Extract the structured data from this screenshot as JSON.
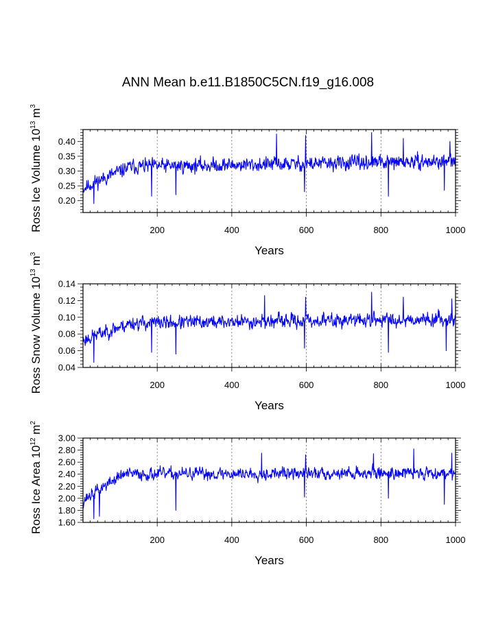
{
  "title": "ANN Mean b.e11.B1850C5CN.f19_g16.008",
  "colors": {
    "series": "#0000ff",
    "axis": "#000000",
    "grid": "#555555"
  },
  "chart_data": [
    {
      "type": "line",
      "ylabel": "Ross Ice Volume 10^13 m^3",
      "ylabel_parts": {
        "main": "Ross Ice Volume 10",
        "sup1": "13",
        "mid": " m",
        "sup2": "3"
      },
      "xlabel": "Years",
      "xlim": [
        1,
        1000
      ],
      "ylim": [
        0.16,
        0.44
      ],
      "xticks": [
        200,
        400,
        600,
        800,
        1000
      ],
      "xtick_labels": [
        "200",
        "400",
        "600",
        "800",
        "1000"
      ],
      "yticks": [
        0.2,
        0.25,
        0.3,
        0.35,
        0.4
      ],
      "ytick_labels": [
        "0.20",
        "0.25",
        "0.30",
        "0.35",
        "0.40"
      ],
      "gridlines_x": [
        200,
        400,
        600,
        800
      ],
      "series": [
        {
          "name": "Ross Ice Volume",
          "gen": {
            "seed": 11,
            "start": 0.24,
            "ramp_end": 130,
            "plateau": 0.315,
            "trend": 2e-05,
            "amp": 0.038,
            "dips": [
              [
                30,
                0.19
              ],
              [
                185,
                0.215
              ],
              [
                250,
                0.22
              ],
              [
                595,
                0.23
              ],
              [
                820,
                0.215
              ],
              [
                970,
                0.235
              ]
            ],
            "peaks": [
              [
                520,
                0.425
              ],
              [
                598,
                0.42
              ],
              [
                775,
                0.43
              ],
              [
                860,
                0.41
              ],
              [
                985,
                0.4
              ]
            ]
          }
        }
      ]
    },
    {
      "type": "line",
      "ylabel": "Ross Snow Volume 10^13 m^3",
      "ylabel_parts": {
        "main": "Ross Snow Volume 10",
        "sup1": "13",
        "mid": " m",
        "sup2": "3"
      },
      "xlabel": "Years",
      "xlim": [
        1,
        1000
      ],
      "ylim": [
        0.04,
        0.14
      ],
      "xticks": [
        200,
        400,
        600,
        800,
        1000
      ],
      "xtick_labels": [
        "200",
        "400",
        "600",
        "800",
        "1000"
      ],
      "yticks": [
        0.04,
        0.06,
        0.08,
        0.1,
        0.12,
        0.14
      ],
      "ytick_labels": [
        "0.04",
        "0.06",
        "0.08",
        "0.10",
        "0.12",
        "0.14"
      ],
      "gridlines_x": [
        200,
        400,
        600,
        800
      ],
      "series": [
        {
          "name": "Ross Snow Volume",
          "gen": {
            "seed": 23,
            "start": 0.072,
            "ramp_end": 130,
            "plateau": 0.093,
            "trend": 6e-06,
            "amp": 0.013,
            "dips": [
              [
                30,
                0.046
              ],
              [
                185,
                0.058
              ],
              [
                250,
                0.056
              ],
              [
                595,
                0.063
              ],
              [
                820,
                0.058
              ],
              [
                975,
                0.06
              ]
            ],
            "peaks": [
              [
                488,
                0.126
              ],
              [
                598,
                0.124
              ],
              [
                775,
                0.13
              ],
              [
                860,
                0.124
              ],
              [
                990,
                0.122
              ]
            ]
          }
        }
      ]
    },
    {
      "type": "line",
      "ylabel": "Ross Ice Area 10^12 m^2",
      "ylabel_parts": {
        "main": "Ross Ice Area 10",
        "sup1": "12",
        "mid": " m",
        "sup2": "2"
      },
      "xlabel": "Years",
      "xlim": [
        1,
        1000
      ],
      "ylim": [
        1.6,
        3.0
      ],
      "xticks": [
        200,
        400,
        600,
        800,
        1000
      ],
      "xtick_labels": [
        "200",
        "400",
        "600",
        "800",
        "1000"
      ],
      "yticks": [
        1.6,
        1.8,
        2.0,
        2.2,
        2.4,
        2.6,
        2.8,
        3.0
      ],
      "ytick_labels": [
        "1.60",
        "1.80",
        "2.00",
        "2.20",
        "2.40",
        "2.60",
        "2.80",
        "3.00"
      ],
      "gridlines_x": [
        200,
        400,
        600,
        800
      ],
      "series": [
        {
          "name": "Ross Ice Area",
          "gen": {
            "seed": 37,
            "start": 1.95,
            "ramp_end": 110,
            "plateau": 2.4,
            "trend": 3e-05,
            "amp": 0.16,
            "dips": [
              [
                30,
                1.66
              ],
              [
                45,
                1.7
              ],
              [
                250,
                1.8
              ],
              [
                595,
                2.02
              ],
              [
                820,
                2.0
              ],
              [
                970,
                1.9
              ]
            ],
            "peaks": [
              [
                480,
                2.75
              ],
              [
                598,
                2.72
              ],
              [
                780,
                2.74
              ],
              [
                888,
                2.82
              ],
              [
                990,
                2.75
              ]
            ]
          }
        }
      ]
    }
  ]
}
